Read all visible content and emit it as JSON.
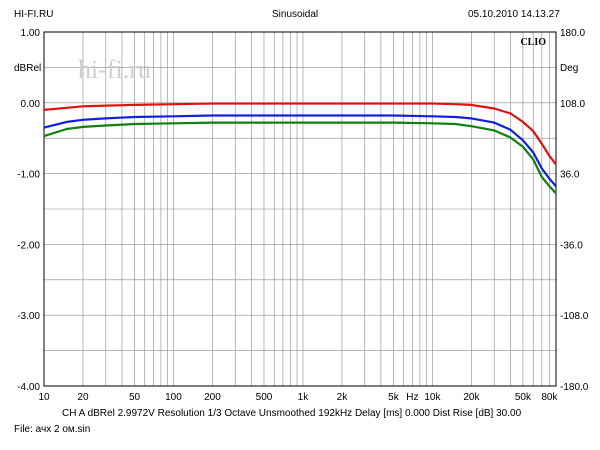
{
  "header": {
    "left": "HI-FI.RU",
    "center": "Sinusoidal",
    "right": "05.10.2010 14.13.27"
  },
  "watermark": "hi-fi.ru",
  "brand": "CLIO",
  "footer": {
    "settings": "CH A   dBRel 2.9972V   Resolution 1/3 Octave   Unsmoothed   192kHz   Delay [ms] 0.000   Dist Rise [dB] 30.00",
    "file": "File: ачх 2 ом.sin"
  },
  "colors": {
    "red": "#e01010",
    "blue": "#1020e0",
    "green": "#108010",
    "grid": "#8a8a8a"
  },
  "chart_data": {
    "type": "line",
    "x_scale": "log",
    "xlim": [
      10,
      90000
    ],
    "ylim": [
      -4,
      1
    ],
    "y2lim": [
      -180,
      180
    ],
    "ylabel": "dBRel",
    "y2label": "Deg",
    "xlabel": "Hz",
    "x_ticks": [
      {
        "v": 10,
        "label": "10"
      },
      {
        "v": 20,
        "label": "20"
      },
      {
        "v": 50,
        "label": "50"
      },
      {
        "v": 100,
        "label": "100"
      },
      {
        "v": 200,
        "label": "200"
      },
      {
        "v": 500,
        "label": "500"
      },
      {
        "v": 1000,
        "label": "1k"
      },
      {
        "v": 2000,
        "label": "2k"
      },
      {
        "v": 5000,
        "label": "5k"
      },
      {
        "v": 10000,
        "label": "10k"
      },
      {
        "v": 20000,
        "label": "20k"
      },
      {
        "v": 50000,
        "label": "50k"
      },
      {
        "v": 80000,
        "label": "80k"
      }
    ],
    "y_ticks": [
      "1.00",
      "0.00",
      "-1.00",
      "-2.00",
      "-3.00",
      "-4.00"
    ],
    "y2_ticks": [
      "180.0",
      "108.0",
      "36.0",
      "-36.0",
      "-108.0",
      "-180.0"
    ],
    "grid": true,
    "series": [
      {
        "color": "red",
        "x": [
          10,
          15,
          20,
          30,
          50,
          100,
          200,
          500,
          1000,
          2000,
          5000,
          10000,
          15000,
          20000,
          30000,
          40000,
          50000,
          60000,
          70000,
          80000,
          90000
        ],
        "y": [
          -0.1,
          -0.07,
          -0.05,
          -0.04,
          -0.03,
          -0.02,
          -0.01,
          -0.01,
          -0.01,
          -0.01,
          -0.01,
          -0.01,
          -0.02,
          -0.03,
          -0.08,
          -0.15,
          -0.27,
          -0.4,
          -0.58,
          -0.75,
          -0.87
        ]
      },
      {
        "color": "blue",
        "x": [
          10,
          15,
          20,
          30,
          50,
          100,
          200,
          500,
          1000,
          2000,
          5000,
          10000,
          15000,
          20000,
          30000,
          40000,
          50000,
          60000,
          70000,
          80000,
          90000
        ],
        "y": [
          -0.35,
          -0.27,
          -0.24,
          -0.22,
          -0.2,
          -0.19,
          -0.18,
          -0.18,
          -0.18,
          -0.18,
          -0.18,
          -0.19,
          -0.2,
          -0.22,
          -0.28,
          -0.38,
          -0.53,
          -0.7,
          -0.93,
          -1.07,
          -1.18
        ]
      },
      {
        "color": "green",
        "x": [
          10,
          15,
          20,
          30,
          50,
          100,
          200,
          500,
          1000,
          2000,
          5000,
          10000,
          15000,
          20000,
          30000,
          40000,
          50000,
          60000,
          70000,
          80000,
          90000
        ],
        "y": [
          -0.47,
          -0.37,
          -0.34,
          -0.32,
          -0.3,
          -0.29,
          -0.28,
          -0.28,
          -0.28,
          -0.28,
          -0.28,
          -0.29,
          -0.3,
          -0.33,
          -0.39,
          -0.49,
          -0.62,
          -0.8,
          -1.05,
          -1.18,
          -1.28
        ]
      }
    ]
  }
}
